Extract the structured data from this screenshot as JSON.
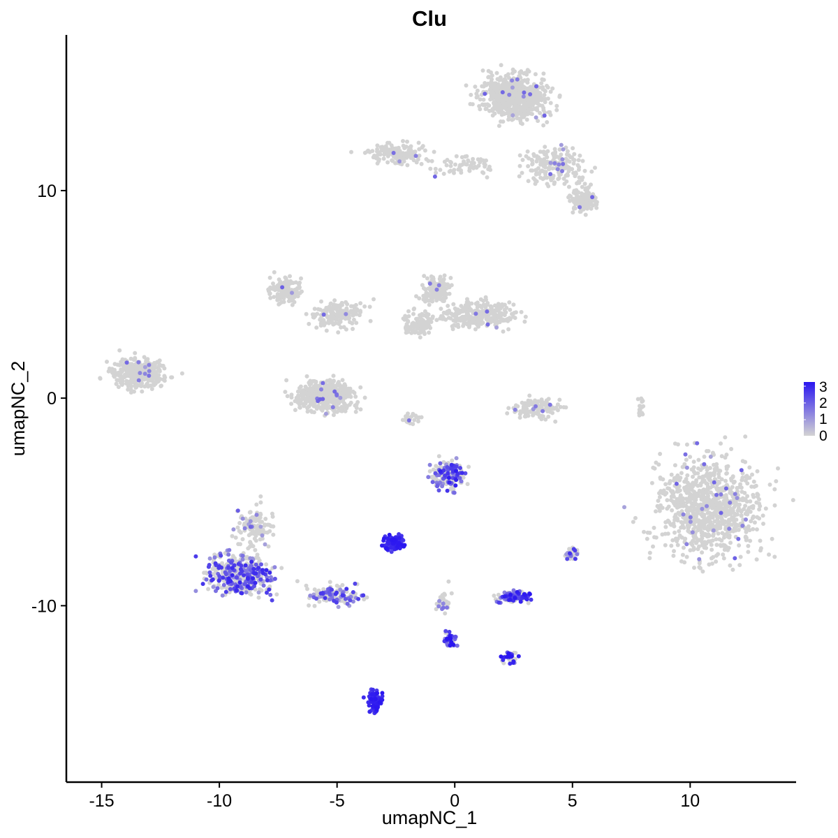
{
  "chart_data": {
    "type": "scatter",
    "title": "Clu",
    "xlabel": "umapNC_1",
    "ylabel": "umapNC_2",
    "xlim": [
      -16.5,
      14.5
    ],
    "ylim": [
      -18.5,
      17.5
    ],
    "x_ticks": [
      -15,
      -10,
      -5,
      0,
      5,
      10
    ],
    "y_ticks": [
      -10,
      0,
      10
    ],
    "tick_labels_x": [
      "-15",
      "-10",
      "-5",
      "0",
      "5",
      "10"
    ],
    "tick_labels_y": [
      "-10",
      "0",
      "10"
    ],
    "grid": false,
    "legend": {
      "position": "right",
      "type": "colorbar",
      "min": 0,
      "max": 3,
      "labels": [
        "3",
        "2",
        "1",
        "0"
      ],
      "low_color": "#d3d3d3",
      "high_color": "#2a16f0"
    },
    "clusters": [
      {
        "cx": 10.8,
        "cy": -5.3,
        "sx": 1.9,
        "sy": 2.0,
        "n": 900,
        "expr": 0.03
      },
      {
        "cx": 2.5,
        "cy": 14.5,
        "sx": 1.2,
        "sy": 0.9,
        "n": 650,
        "expr": 0.02
      },
      {
        "cx": 4.2,
        "cy": 11.2,
        "sx": 1.2,
        "sy": 0.8,
        "n": 180,
        "expr": 0.02
      },
      {
        "cx": 5.5,
        "cy": 9.5,
        "sx": 0.5,
        "sy": 0.5,
        "n": 120,
        "expr": 0.02
      },
      {
        "cx": -2.5,
        "cy": 11.8,
        "sx": 1.0,
        "sy": 0.4,
        "n": 150,
        "expr": 0.02
      },
      {
        "cx": 0.5,
        "cy": 11.2,
        "sx": 1.0,
        "sy": 0.4,
        "n": 60,
        "expr": 0.02
      },
      {
        "cx": -13.4,
        "cy": 1.2,
        "sx": 0.9,
        "sy": 0.6,
        "n": 380,
        "expr": 0.02
      },
      {
        "cx": -5.5,
        "cy": 0.1,
        "sx": 1.0,
        "sy": 0.6,
        "n": 450,
        "expr": 0.02
      },
      {
        "cx": -7.2,
        "cy": 5.2,
        "sx": 0.5,
        "sy": 0.5,
        "n": 140,
        "expr": 0.02
      },
      {
        "cx": -5.0,
        "cy": 4.0,
        "sx": 0.9,
        "sy": 0.6,
        "n": 160,
        "expr": 0.02
      },
      {
        "cx": -0.8,
        "cy": 5.2,
        "sx": 0.5,
        "sy": 0.5,
        "n": 180,
        "expr": 0.02
      },
      {
        "cx": 1.0,
        "cy": 4.0,
        "sx": 1.3,
        "sy": 0.5,
        "n": 300,
        "expr": 0.02
      },
      {
        "cx": -1.6,
        "cy": 3.6,
        "sx": 0.6,
        "sy": 0.6,
        "n": 90,
        "expr": 0.02
      },
      {
        "cx": 3.5,
        "cy": -0.5,
        "sx": 0.9,
        "sy": 0.4,
        "n": 130,
        "expr": 0.03
      },
      {
        "cx": -0.3,
        "cy": -3.7,
        "sx": 0.6,
        "sy": 0.6,
        "n": 180,
        "expr": 0.45
      },
      {
        "cx": -9.0,
        "cy": -8.5,
        "sx": 1.2,
        "sy": 0.8,
        "n": 420,
        "expr": 0.4
      },
      {
        "cx": -8.5,
        "cy": -6.2,
        "sx": 0.6,
        "sy": 0.8,
        "n": 120,
        "expr": 0.1
      },
      {
        "cx": -5.2,
        "cy": -9.5,
        "sx": 1.0,
        "sy": 0.4,
        "n": 120,
        "expr": 0.3
      },
      {
        "cx": -2.6,
        "cy": -7.0,
        "sx": 0.35,
        "sy": 0.3,
        "n": 110,
        "expr": 0.95
      },
      {
        "cx": 2.5,
        "cy": -9.6,
        "sx": 0.55,
        "sy": 0.22,
        "n": 120,
        "expr": 0.55
      },
      {
        "cx": 2.3,
        "cy": -12.5,
        "sx": 0.3,
        "sy": 0.25,
        "n": 40,
        "expr": 0.6
      },
      {
        "cx": -0.2,
        "cy": -11.6,
        "sx": 0.25,
        "sy": 0.3,
        "n": 45,
        "expr": 0.7
      },
      {
        "cx": -0.5,
        "cy": -9.8,
        "sx": 0.3,
        "sy": 0.6,
        "n": 35,
        "expr": 0.2
      },
      {
        "cx": -3.4,
        "cy": -14.6,
        "sx": 0.25,
        "sy": 0.45,
        "n": 90,
        "expr": 1.0
      },
      {
        "cx": 5.0,
        "cy": -7.5,
        "sx": 0.2,
        "sy": 0.25,
        "n": 25,
        "expr": 0.4
      },
      {
        "cx": 7.9,
        "cy": -0.5,
        "sx": 0.15,
        "sy": 0.4,
        "n": 20,
        "expr": 0.0
      },
      {
        "cx": -1.8,
        "cy": -1.0,
        "sx": 0.5,
        "sy": 0.2,
        "n": 22,
        "expr": 0.2
      }
    ]
  }
}
